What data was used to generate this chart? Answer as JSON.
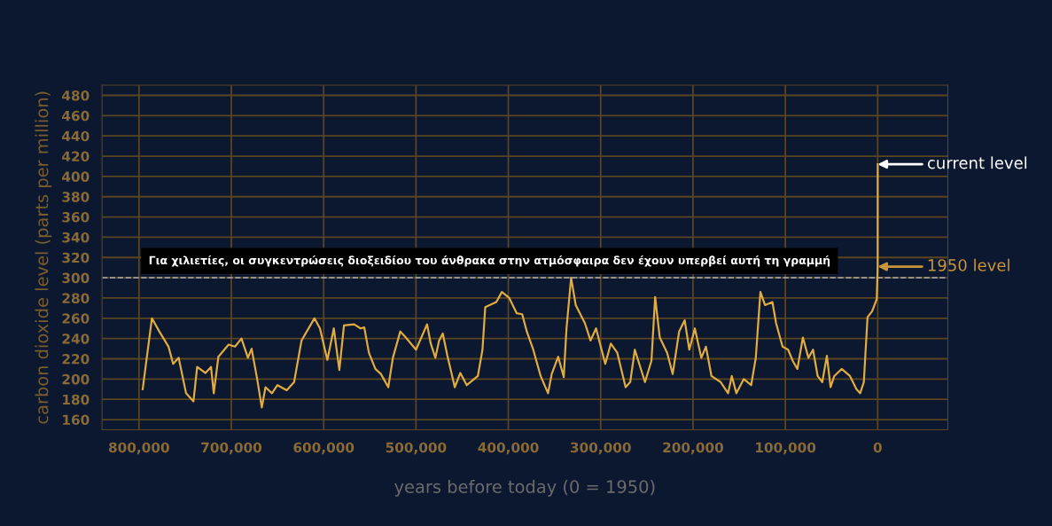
{
  "chart_data": {
    "type": "line",
    "xlabel": "years before today (0 = 1950)",
    "ylabel": "carbon dioxide level (parts per million)",
    "xlim": [
      840000,
      -76000
    ],
    "ylim": [
      150,
      490
    ],
    "xticks": [
      {
        "value": 800000,
        "label": "800,000"
      },
      {
        "value": 700000,
        "label": "700,000"
      },
      {
        "value": 600000,
        "label": "600,000"
      },
      {
        "value": 500000,
        "label": "500,000"
      },
      {
        "value": 400000,
        "label": "400,000"
      },
      {
        "value": 300000,
        "label": "300,000"
      },
      {
        "value": 200000,
        "label": "200,000"
      },
      {
        "value": 100000,
        "label": "100,000"
      },
      0
    ],
    "yticks": [
      160,
      180,
      200,
      220,
      240,
      260,
      280,
      300,
      320,
      340,
      360,
      380,
      400,
      420,
      440,
      460,
      480
    ],
    "grid": true,
    "line_style": "solid",
    "marker": "none",
    "series": [
      {
        "color": "#e0ac40",
        "x": [
          796000,
          786000,
          778000,
          768000,
          763000,
          757000,
          749000,
          741000,
          737000,
          728000,
          722000,
          719000,
          714000,
          703000,
          696000,
          689000,
          682000,
          678000,
          672000,
          667000,
          663000,
          656000,
          650000,
          640000,
          632000,
          624000,
          610000,
          604000,
          596000,
          589000,
          583000,
          578000,
          567000,
          560000,
          556000,
          551000,
          544000,
          538000,
          530000,
          525000,
          517000,
          511000,
          500000,
          488000,
          484000,
          479000,
          475000,
          471000,
          466000,
          458000,
          452000,
          445000,
          433000,
          428000,
          425000,
          413000,
          407000,
          399000,
          391000,
          385000,
          380000,
          373000,
          365000,
          357000,
          353000,
          346000,
          340000,
          337000,
          332000,
          327000,
          317000,
          311000,
          305000,
          295000,
          289000,
          282000,
          273000,
          268000,
          263000,
          252000,
          245000,
          241000,
          236000,
          228000,
          222000,
          215000,
          209000,
          204000,
          198000,
          191000,
          186000,
          180000,
          170000,
          162000,
          158000,
          153000,
          145000,
          137000,
          132000,
          127000,
          122000,
          114000,
          110000,
          103000,
          97000,
          92000,
          87000,
          81000,
          75000,
          70000,
          65000,
          60000,
          55000,
          51000,
          47000,
          39000,
          30000,
          23000,
          19000,
          15000,
          11000,
          6000,
          1000,
          0,
          -70
        ],
        "values": [
          190,
          260,
          247,
          232,
          215,
          221,
          186,
          178,
          212,
          206,
          212,
          186,
          222,
          234,
          232,
          240,
          221,
          230,
          200,
          172,
          192,
          186,
          194,
          189,
          197,
          238,
          260,
          250,
          219,
          250,
          209,
          253,
          254,
          250,
          251,
          226,
          210,
          205,
          192,
          221,
          247,
          241,
          229,
          254,
          235,
          221,
          238,
          245,
          223,
          192,
          206,
          194,
          203,
          229,
          271,
          276,
          286,
          280,
          265,
          264,
          247,
          229,
          203,
          186,
          205,
          222,
          202,
          250,
          300,
          273,
          255,
          238,
          250,
          215,
          235,
          226,
          192,
          197,
          229,
          197,
          218,
          281,
          241,
          226,
          205,
          247,
          258,
          229,
          250,
          221,
          232,
          203,
          197,
          186,
          203,
          186,
          200,
          194,
          221,
          286,
          273,
          276,
          255,
          232,
          229,
          218,
          210,
          241,
          221,
          229,
          203,
          197,
          223,
          192,
          203,
          210,
          203,
          190,
          186,
          197,
          261,
          267,
          279,
          311,
          412
        ]
      }
    ],
    "ref_lines": [
      {
        "axis": "y",
        "value": 300,
        "label": "Για χιλιετίες, οι συγκεντρώσεις διοξειδίου του άνθρακα στην ατμόσφαιρα δεν έχουν υπερβεί αυτή τη γραμμή",
        "color": "#a0a0a0",
        "line_style": "dashed"
      }
    ],
    "annotations": [
      {
        "text": "current level",
        "x": -70,
        "y": 412
      },
      {
        "text": "1950 level",
        "x": 0,
        "y": 311
      }
    ]
  }
}
